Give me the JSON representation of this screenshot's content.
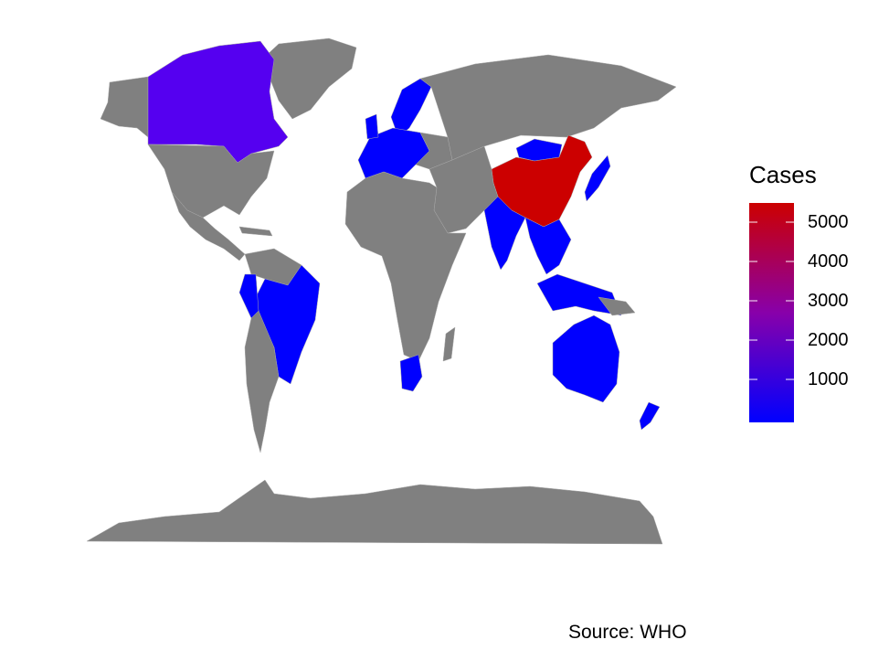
{
  "legend": {
    "title": "Cases",
    "low_color": "#0000ff",
    "high_color": "#cc0000",
    "min": 0,
    "max": 5500,
    "ticks": [
      "5000",
      "4000",
      "3000",
      "2000",
      "1000"
    ]
  },
  "caption": "Source: WHO",
  "colors": {
    "no_data": "#808080",
    "low_cases": "#0000ff",
    "canada": "#5500f0",
    "china": "#cc0000",
    "background": "#ffffff"
  }
}
